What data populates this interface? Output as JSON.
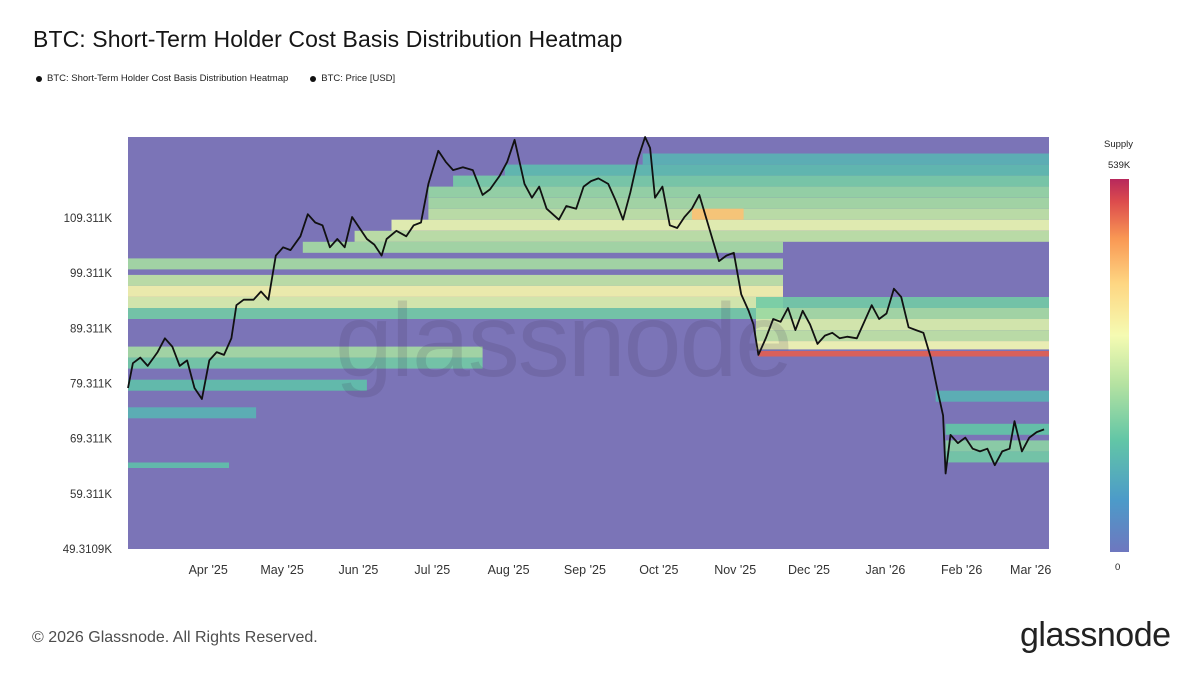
{
  "title": "BTC: Short-Term Holder Cost Basis Distribution Heatmap",
  "legend": [
    {
      "label": "BTC: Short-Term Holder Cost Basis Distribution Heatmap"
    },
    {
      "label": "BTC: Price [USD]"
    }
  ],
  "colorbar": {
    "title": "Supply",
    "max_label": "539K",
    "min_label": "0"
  },
  "footer": {
    "copyright": "© 2026 Glassnode. All Rights Reserved.",
    "brand": "glassnode"
  },
  "watermark": "glassnode",
  "chart_data": {
    "type": "heatmap",
    "title": "BTC: Short-Term Holder Cost Basis Distribution Heatmap",
    "x_range": [
      "2025-03-10",
      "2026-03-19"
    ],
    "y_range": [
      49310.9,
      124000
    ],
    "x_ticks": [
      {
        "date": "2025-04-01",
        "label": "Apr '25"
      },
      {
        "date": "2025-05-01",
        "label": "May '25"
      },
      {
        "date": "2025-06-01",
        "label": "Jun '25"
      },
      {
        "date": "2025-07-01",
        "label": "Jul '25"
      },
      {
        "date": "2025-08-01",
        "label": "Aug '25"
      },
      {
        "date": "2025-09-01",
        "label": "Sep '25"
      },
      {
        "date": "2025-10-01",
        "label": "Oct '25"
      },
      {
        "date": "2025-11-01",
        "label": "Nov '25"
      },
      {
        "date": "2025-12-01",
        "label": "Dec '25"
      },
      {
        "date": "2026-01-01",
        "label": "Jan '26"
      },
      {
        "date": "2026-02-01",
        "label": "Feb '26"
      },
      {
        "date": "2026-03-01",
        "label": "Mar '26"
      }
    ],
    "y_ticks": [
      {
        "value": 49310.9,
        "label": "49.3109K"
      },
      {
        "value": 59311,
        "label": "59.311K"
      },
      {
        "value": 69311,
        "label": "69.311K"
      },
      {
        "value": 79311,
        "label": "79.311K"
      },
      {
        "value": 89311,
        "label": "89.311K"
      },
      {
        "value": 99311,
        "label": "99.311K"
      },
      {
        "value": 109311,
        "label": "109.311K"
      }
    ],
    "colorscale": {
      "name": "Supply",
      "min": 0,
      "max": 539000,
      "max_label": "539K"
    },
    "heatmap_bands": [
      {
        "start": "2025-03-10",
        "end": "2025-12-01",
        "y_low": 100000,
        "y_high": 102000,
        "intensity": 0.45
      },
      {
        "start": "2025-03-10",
        "end": "2025-12-01",
        "y_low": 97000,
        "y_high": 99000,
        "intensity": 0.5
      },
      {
        "start": "2025-03-10",
        "end": "2025-12-01",
        "y_low": 95000,
        "y_high": 97000,
        "intensity": 0.62
      },
      {
        "start": "2025-03-10",
        "end": "2025-12-01",
        "y_low": 93000,
        "y_high": 95000,
        "intensity": 0.55
      },
      {
        "start": "2025-03-10",
        "end": "2025-12-01",
        "y_low": 91000,
        "y_high": 93000,
        "intensity": 0.35
      },
      {
        "start": "2025-03-10",
        "end": "2025-08-01",
        "y_low": 84000,
        "y_high": 86000,
        "intensity": 0.45
      },
      {
        "start": "2025-03-10",
        "end": "2025-08-01",
        "y_low": 82000,
        "y_high": 84000,
        "intensity": 0.35
      },
      {
        "start": "2025-03-10",
        "end": "2025-06-15",
        "y_low": 78000,
        "y_high": 80000,
        "intensity": 0.3
      },
      {
        "start": "2025-03-10",
        "end": "2025-05-01",
        "y_low": 73000,
        "y_high": 75000,
        "intensity": 0.25
      },
      {
        "start": "2025-03-10",
        "end": "2025-04-20",
        "y_low": 64000,
        "y_high": 65000,
        "intensity": 0.3
      },
      {
        "start": "2025-05-20",
        "end": "2025-12-01",
        "y_low": 103000,
        "y_high": 105000,
        "intensity": 0.45
      },
      {
        "start": "2025-06-10",
        "end": "2026-03-19",
        "y_low": 105000,
        "y_high": 107000,
        "intensity": 0.5
      },
      {
        "start": "2025-06-25",
        "end": "2026-03-19",
        "y_low": 107000,
        "y_high": 109000,
        "intensity": 0.58
      },
      {
        "start": "2025-07-10",
        "end": "2026-03-19",
        "y_low": 109000,
        "y_high": 111000,
        "intensity": 0.5
      },
      {
        "start": "2025-07-10",
        "end": "2026-03-19",
        "y_low": 111000,
        "y_high": 113000,
        "intensity": 0.45
      },
      {
        "start": "2025-07-10",
        "end": "2026-03-19",
        "y_low": 113000,
        "y_high": 115000,
        "intensity": 0.42
      },
      {
        "start": "2025-07-20",
        "end": "2026-03-19",
        "y_low": 115000,
        "y_high": 117000,
        "intensity": 0.36
      },
      {
        "start": "2025-08-10",
        "end": "2026-03-19",
        "y_low": 117000,
        "y_high": 119000,
        "intensity": 0.28
      },
      {
        "start": "2025-10-05",
        "end": "2026-03-19",
        "y_low": 119000,
        "y_high": 121000,
        "intensity": 0.25
      },
      {
        "start": "2025-10-25",
        "end": "2025-11-15",
        "y_low": 109000,
        "y_high": 111000,
        "intensity": 0.78
      },
      {
        "start": "2025-11-20",
        "end": "2026-03-19",
        "y_low": 93000,
        "y_high": 95000,
        "intensity": 0.35
      },
      {
        "start": "2025-11-20",
        "end": "2026-03-19",
        "y_low": 91000,
        "y_high": 93000,
        "intensity": 0.45
      },
      {
        "start": "2025-11-20",
        "end": "2026-03-19",
        "y_low": 89000,
        "y_high": 91000,
        "intensity": 0.55
      },
      {
        "start": "2025-11-20",
        "end": "2026-03-19",
        "y_low": 87000,
        "y_high": 89000,
        "intensity": 0.5
      },
      {
        "start": "2025-11-20",
        "end": "2026-03-19",
        "y_low": 85500,
        "y_high": 87000,
        "intensity": 0.6
      },
      {
        "start": "2025-11-21",
        "end": "2026-03-19",
        "y_low": 84200,
        "y_high": 85200,
        "intensity": 0.95
      },
      {
        "start": "2026-02-01",
        "end": "2026-03-19",
        "y_low": 76000,
        "y_high": 78000,
        "intensity": 0.25
      },
      {
        "start": "2026-02-05",
        "end": "2026-03-19",
        "y_low": 70000,
        "y_high": 72000,
        "intensity": 0.32
      },
      {
        "start": "2026-02-05",
        "end": "2026-03-19",
        "y_low": 67000,
        "y_high": 69000,
        "intensity": 0.4
      },
      {
        "start": "2026-02-05",
        "end": "2026-03-19",
        "y_low": 65000,
        "y_high": 67000,
        "intensity": 0.35
      }
    ],
    "series": [
      {
        "name": "BTC: Price [USD]",
        "points": [
          [
            "2025-03-10",
            78500
          ],
          [
            "2025-03-12",
            83000
          ],
          [
            "2025-03-15",
            84000
          ],
          [
            "2025-03-18",
            82500
          ],
          [
            "2025-03-22",
            85000
          ],
          [
            "2025-03-25",
            87500
          ],
          [
            "2025-03-28",
            86000
          ],
          [
            "2025-03-31",
            82500
          ],
          [
            "2025-04-03",
            83500
          ],
          [
            "2025-04-06",
            78500
          ],
          [
            "2025-04-09",
            76500
          ],
          [
            "2025-04-12",
            83500
          ],
          [
            "2025-04-15",
            85000
          ],
          [
            "2025-04-18",
            84500
          ],
          [
            "2025-04-21",
            87500
          ],
          [
            "2025-04-23",
            93500
          ],
          [
            "2025-04-26",
            94500
          ],
          [
            "2025-04-30",
            94500
          ],
          [
            "2025-05-03",
            96000
          ],
          [
            "2025-05-06",
            94500
          ],
          [
            "2025-05-09",
            102500
          ],
          [
            "2025-05-12",
            104000
          ],
          [
            "2025-05-15",
            103500
          ],
          [
            "2025-05-19",
            106000
          ],
          [
            "2025-05-22",
            110000
          ],
          [
            "2025-05-25",
            108500
          ],
          [
            "2025-05-28",
            108000
          ],
          [
            "2025-05-31",
            104000
          ],
          [
            "2025-06-03",
            105500
          ],
          [
            "2025-06-06",
            104000
          ],
          [
            "2025-06-09",
            109500
          ],
          [
            "2025-06-12",
            107500
          ],
          [
            "2025-06-15",
            105500
          ],
          [
            "2025-06-18",
            104500
          ],
          [
            "2025-06-21",
            102500
          ],
          [
            "2025-06-23",
            105500
          ],
          [
            "2025-06-27",
            107000
          ],
          [
            "2025-07-01",
            106000
          ],
          [
            "2025-07-04",
            108000
          ],
          [
            "2025-07-07",
            108500
          ],
          [
            "2025-07-10",
            115500
          ],
          [
            "2025-07-14",
            121500
          ],
          [
            "2025-07-17",
            119500
          ],
          [
            "2025-07-20",
            118000
          ],
          [
            "2025-07-24",
            118500
          ],
          [
            "2025-07-28",
            118000
          ],
          [
            "2025-08-01",
            113500
          ],
          [
            "2025-08-04",
            114500
          ],
          [
            "2025-08-08",
            117000
          ],
          [
            "2025-08-11",
            119500
          ],
          [
            "2025-08-14",
            123500
          ],
          [
            "2025-08-18",
            115500
          ],
          [
            "2025-08-21",
            113000
          ],
          [
            "2025-08-24",
            115000
          ],
          [
            "2025-08-27",
            111000
          ],
          [
            "2025-09-01",
            109000
          ],
          [
            "2025-09-04",
            111500
          ],
          [
            "2025-09-08",
            111000
          ],
          [
            "2025-09-11",
            115000
          ],
          [
            "2025-09-14",
            116000
          ],
          [
            "2025-09-17",
            116500
          ],
          [
            "2025-09-21",
            115500
          ],
          [
            "2025-09-24",
            112500
          ],
          [
            "2025-09-27",
            109000
          ],
          [
            "2025-09-30",
            114000
          ],
          [
            "2025-10-03",
            120000
          ],
          [
            "2025-10-06",
            124000
          ],
          [
            "2025-10-08",
            122000
          ],
          [
            "2025-10-10",
            113000
          ],
          [
            "2025-10-13",
            115000
          ],
          [
            "2025-10-16",
            108000
          ],
          [
            "2025-10-19",
            107500
          ],
          [
            "2025-10-22",
            109500
          ],
          [
            "2025-10-25",
            111000
          ],
          [
            "2025-10-28",
            113500
          ],
          [
            "2025-10-31",
            109000
          ],
          [
            "2025-11-03",
            104500
          ],
          [
            "2025-11-05",
            101500
          ],
          [
            "2025-11-08",
            102500
          ],
          [
            "2025-11-11",
            103000
          ],
          [
            "2025-11-14",
            95500
          ],
          [
            "2025-11-17",
            92500
          ],
          [
            "2025-11-19",
            90000
          ],
          [
            "2025-11-21",
            84500
          ],
          [
            "2025-11-24",
            87500
          ],
          [
            "2025-11-27",
            91000
          ],
          [
            "2025-11-30",
            90500
          ],
          [
            "2025-12-03",
            93000
          ],
          [
            "2025-12-06",
            89000
          ],
          [
            "2025-12-09",
            92500
          ],
          [
            "2025-12-12",
            90000
          ],
          [
            "2025-12-15",
            86500
          ],
          [
            "2025-12-18",
            88000
          ],
          [
            "2025-12-21",
            88500
          ],
          [
            "2025-12-24",
            87500
          ],
          [
            "2025-12-27",
            87800
          ],
          [
            "2025-12-31",
            87500
          ],
          [
            "2026-01-03",
            90500
          ],
          [
            "2026-01-06",
            93500
          ],
          [
            "2026-01-09",
            91000
          ],
          [
            "2026-01-12",
            92000
          ],
          [
            "2026-01-15",
            96500
          ],
          [
            "2026-01-18",
            95000
          ],
          [
            "2026-01-21",
            89500
          ],
          [
            "2026-01-24",
            89000
          ],
          [
            "2026-01-27",
            88500
          ],
          [
            "2026-01-30",
            84000
          ],
          [
            "2026-02-02",
            77500
          ],
          [
            "2026-02-04",
            73500
          ],
          [
            "2026-02-05",
            63000
          ],
          [
            "2026-02-07",
            70000
          ],
          [
            "2026-02-10",
            68500
          ],
          [
            "2026-02-13",
            69500
          ],
          [
            "2026-02-16",
            67500
          ],
          [
            "2026-02-19",
            67000
          ],
          [
            "2026-02-22",
            67500
          ],
          [
            "2026-02-25",
            64500
          ],
          [
            "2026-02-28",
            67000
          ],
          [
            "2026-03-03",
            67500
          ],
          [
            "2026-03-05",
            72500
          ],
          [
            "2026-03-08",
            67000
          ],
          [
            "2026-03-11",
            69500
          ],
          [
            "2026-03-14",
            70500
          ],
          [
            "2026-03-17",
            71000
          ]
        ]
      }
    ]
  }
}
